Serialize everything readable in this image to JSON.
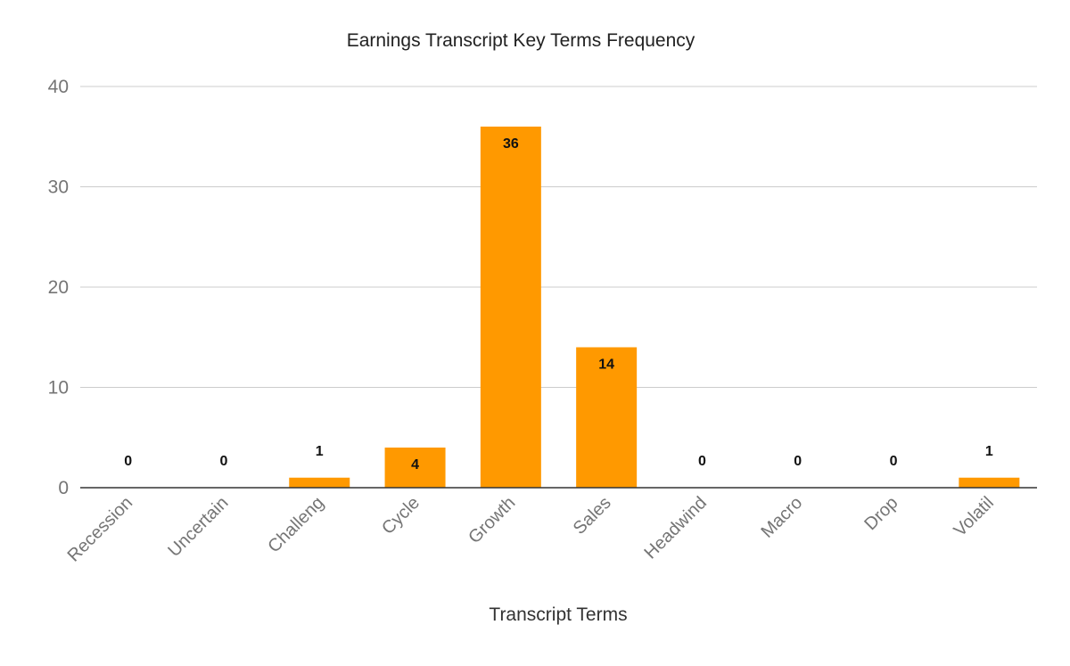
{
  "chart_data": {
    "type": "bar",
    "title": "Earnings Transcript Key Terms Frequency",
    "xlabel": "Transcript Terms",
    "ylabel": "",
    "categories": [
      "Recession",
      "Uncertain",
      "Challeng",
      "Cycle",
      "Growth",
      "Sales",
      "Headwind",
      "Macro",
      "Drop",
      "Volatil"
    ],
    "values": [
      0,
      0,
      1,
      4,
      36,
      14,
      0,
      0,
      0,
      1
    ],
    "ylim": [
      0,
      40
    ],
    "yticks": [
      0,
      10,
      20,
      30,
      40
    ],
    "grid": true,
    "legend": "none",
    "bar_color": "#ff9900",
    "data_labels": true
  }
}
